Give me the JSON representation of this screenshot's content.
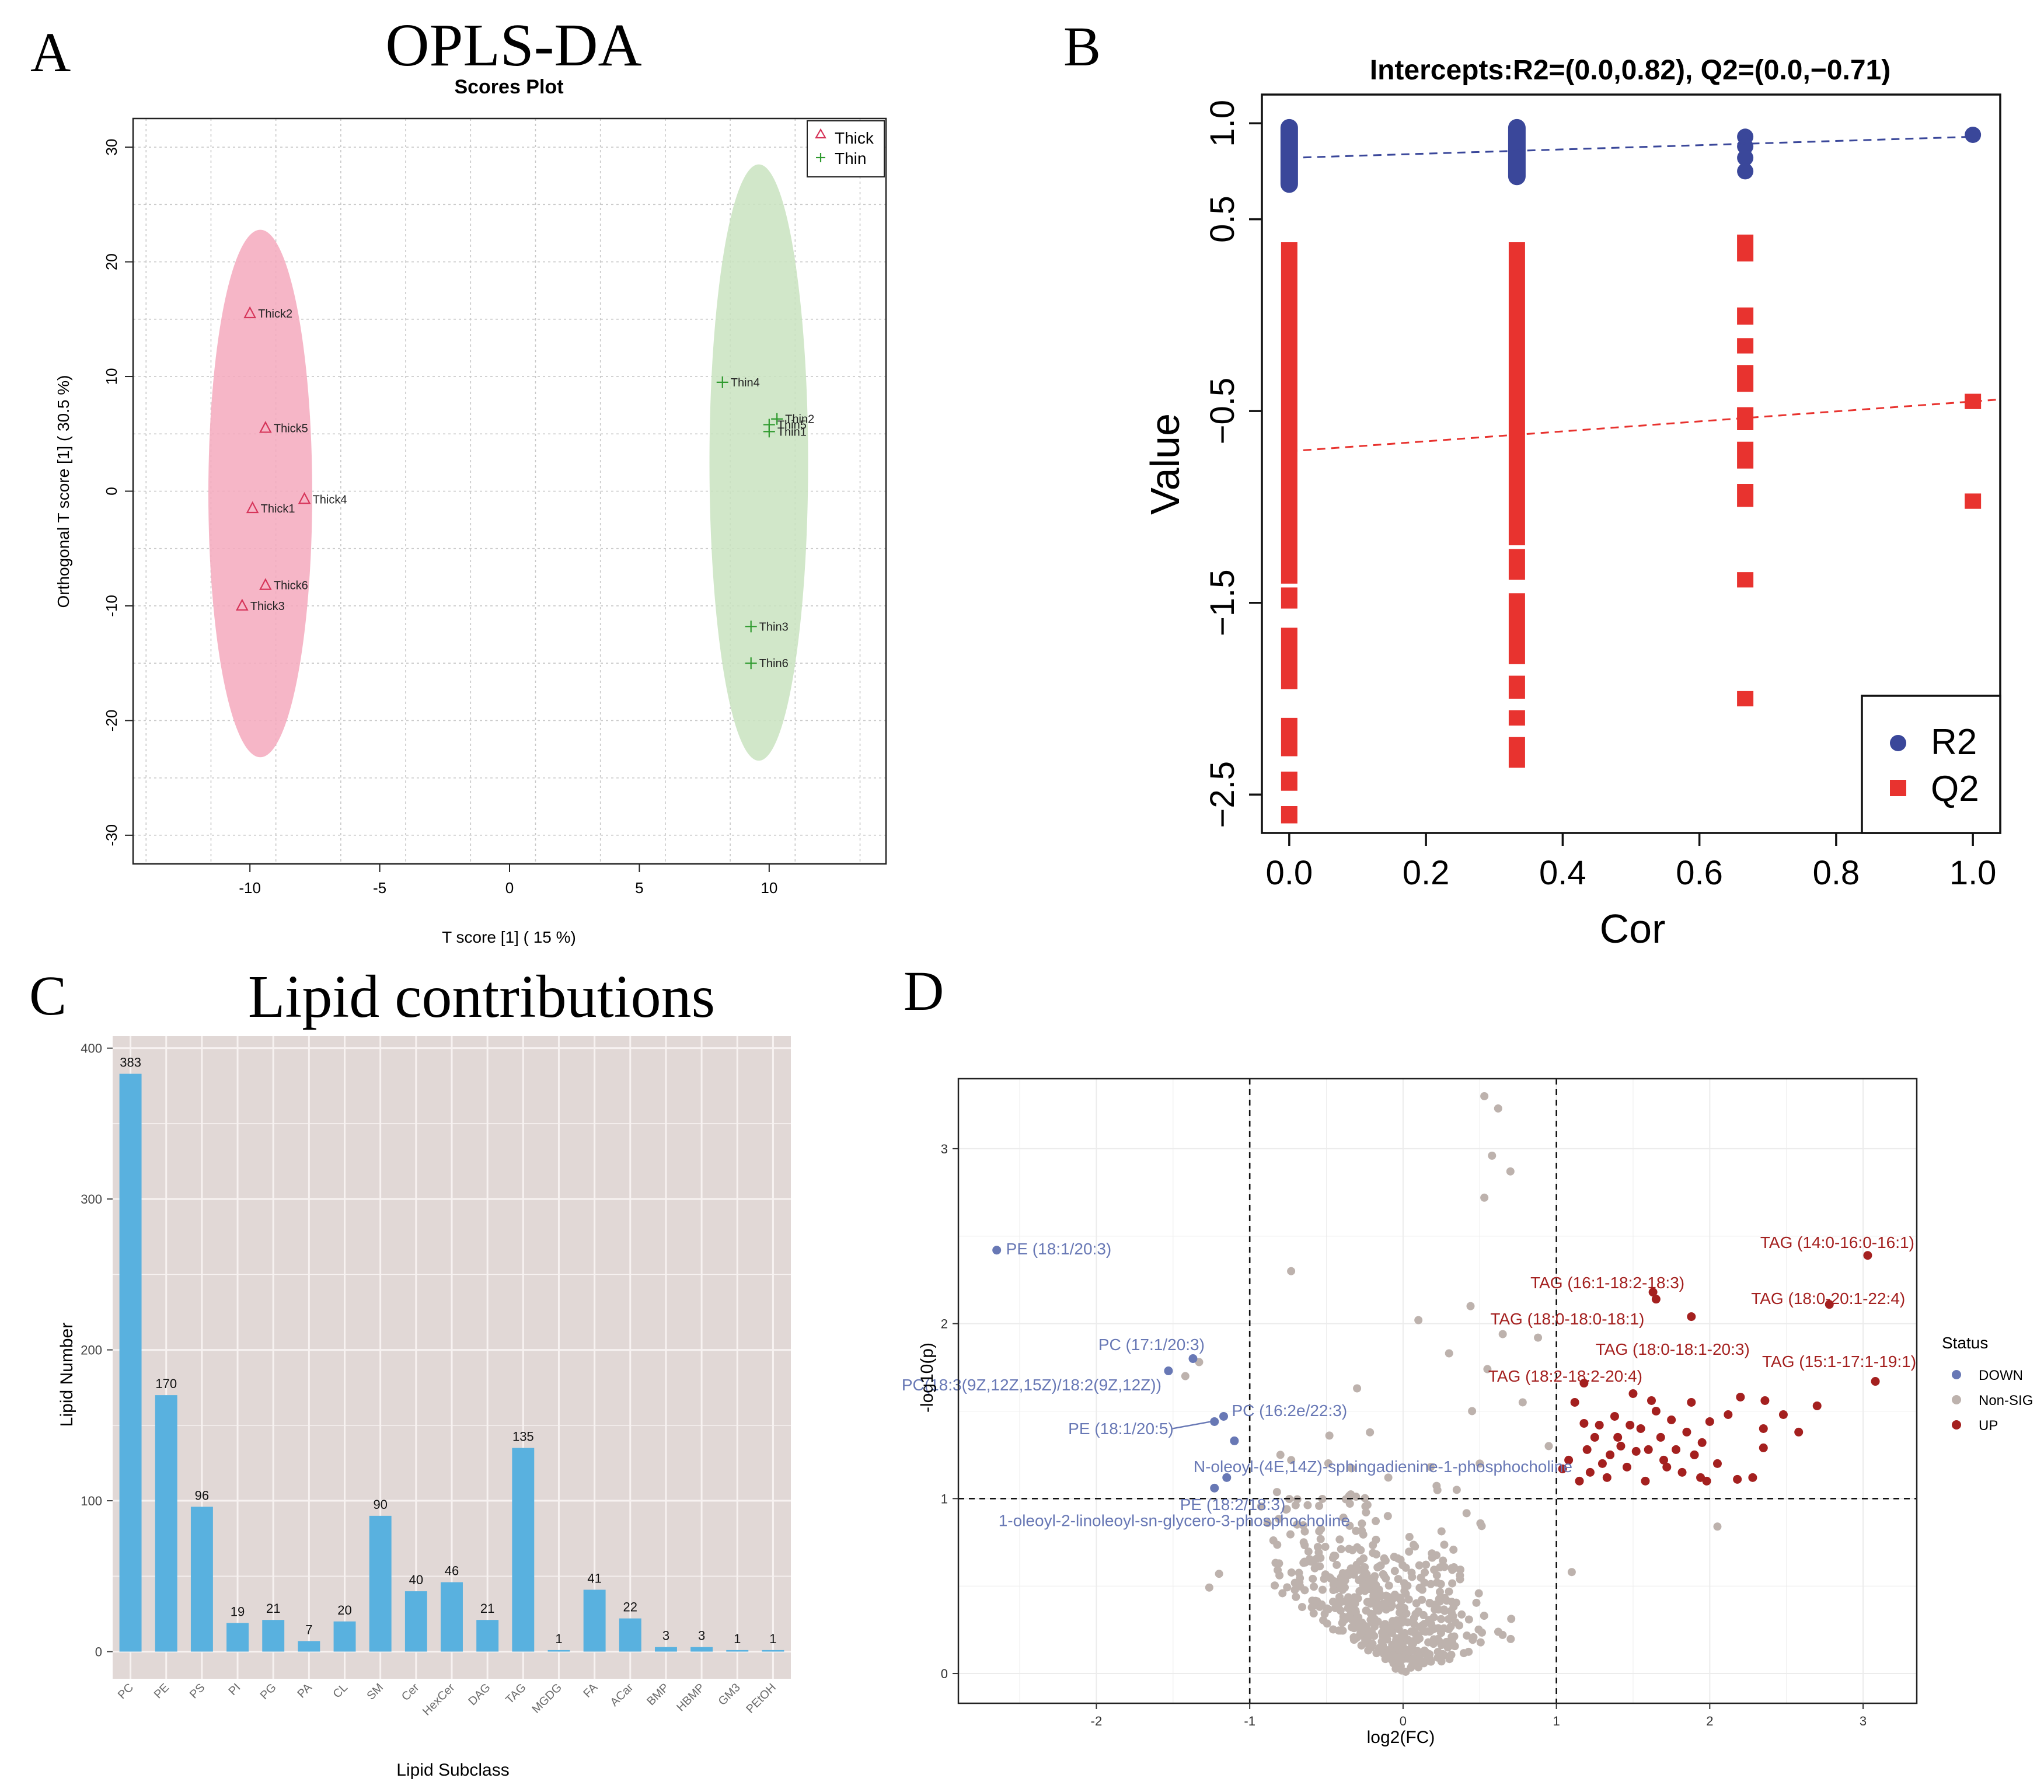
{
  "chart_data": [
    {
      "panel": "A",
      "type": "scatter",
      "title": "OPLS-DA",
      "subtitle": "Scores Plot",
      "xlabel": "T score [1] ( 15 %)",
      "ylabel": "Orthogonal T score [1] ( 30.5 %)",
      "xlim": [
        -14.5,
        14.5
      ],
      "ylim": [
        -32.5,
        32.5
      ],
      "xticks": [
        -10,
        -5,
        0,
        5,
        10
      ],
      "yticks": [
        30,
        20,
        10,
        0,
        -10,
        -20,
        -30
      ],
      "grid": true,
      "legend_position": "top-right",
      "legend": [
        "Thick",
        "Thin"
      ],
      "colors": {
        "Thick": "#d6355a",
        "Thin": "#2e9a2e",
        "Thick_fill": "#f4a9bd",
        "Thin_fill": "#c9e3bf"
      },
      "series": [
        {
          "name": "Thick",
          "marker": "triangle",
          "points": [
            {
              "label": "Thick2",
              "x": -10.0,
              "y": 15.5
            },
            {
              "label": "Thick5",
              "x": -9.4,
              "y": 5.5
            },
            {
              "label": "Thick4",
              "x": -7.9,
              "y": -0.7
            },
            {
              "label": "Thick1",
              "x": -9.9,
              "y": -1.5
            },
            {
              "label": "Thick6",
              "x": -9.4,
              "y": -8.2
            },
            {
              "label": "Thick3",
              "x": -10.3,
              "y": -10.0
            }
          ]
        },
        {
          "name": "Thin",
          "marker": "plus",
          "points": [
            {
              "label": "Thin4",
              "x": 8.2,
              "y": 9.5
            },
            {
              "label": "Thin2",
              "x": 10.3,
              "y": 6.3
            },
            {
              "label": "Thin5",
              "x": 10.0,
              "y": 5.8
            },
            {
              "label": "Thin1",
              "x": 10.0,
              "y": 5.2
            },
            {
              "label": "Thin3",
              "x": 9.3,
              "y": -11.8
            },
            {
              "label": "Thin6",
              "x": 9.3,
              "y": -15.0
            }
          ]
        }
      ],
      "ellipses": [
        {
          "name": "Thick",
          "cx": -9.6,
          "cy": -0.2,
          "rx": 2.0,
          "ry": 23.0
        },
        {
          "name": "Thin",
          "cx": 9.6,
          "cy": 2.5,
          "rx": 1.9,
          "ry": 26.0
        }
      ]
    },
    {
      "panel": "B",
      "type": "scatter",
      "title": "Intercepts:R2=(0.0,0.82), Q2=(0.0,−0.71)",
      "xlabel": "Cor",
      "ylabel": "Value",
      "xlim": [
        -0.04,
        1.04
      ],
      "ylim": [
        -2.7,
        1.15
      ],
      "xticks": [
        "0.0",
        "0.2",
        "0.4",
        "0.6",
        "0.8",
        "1.0"
      ],
      "yticks": [
        "1.0",
        "0.5",
        "−0.5",
        "−1.5",
        "−2.5"
      ],
      "ytick_values": [
        1.0,
        0.5,
        -0.5,
        -1.5,
        -2.5
      ],
      "legend_position": "bottom-right",
      "legend": [
        "R2",
        "Q2"
      ],
      "colors": {
        "R2": "#3a479a",
        "Q2": "#e8332f"
      },
      "r2_line": {
        "intercept": 0.82,
        "slope": 0.11
      },
      "q2_line": {
        "intercept": -0.71,
        "slope": 0.26
      },
      "r2_groups": [
        {
          "x": 0.0,
          "y_min": 0.68,
          "y_max": 0.98
        },
        {
          "x": 0.333,
          "y_min": 0.72,
          "y_max": 0.98
        },
        {
          "x": 0.667,
          "values": [
            0.93,
            0.88,
            0.82,
            0.75
          ]
        },
        {
          "x": 1.0,
          "values": [
            0.94
          ]
        }
      ],
      "q2_groups": [
        {
          "x": 0.0,
          "segments": [
            [
              0.38,
              -1.4
            ],
            [
              -1.42,
              -1.53
            ],
            [
              -1.63,
              -1.95
            ],
            [
              -2.1,
              -2.3
            ],
            [
              -2.38,
              -2.48
            ],
            [
              -2.56,
              -2.65
            ]
          ]
        },
        {
          "x": 0.333,
          "segments": [
            [
              0.38,
              -1.2
            ],
            [
              -1.22,
              -1.38
            ],
            [
              -1.45,
              -1.82
            ],
            [
              -1.88,
              -2.0
            ],
            [
              -2.06,
              -2.14
            ],
            [
              -2.2,
              -2.36
            ]
          ]
        },
        {
          "x": 0.667,
          "segments": [
            [
              0.42,
              0.28
            ],
            [
              0.04,
              -0.05
            ],
            [
              -0.12,
              -0.2
            ],
            [
              -0.26,
              -0.4
            ],
            [
              -0.48,
              -0.6
            ],
            [
              -0.66,
              -0.8
            ],
            [
              -0.88,
              -1.0
            ],
            [
              -1.34,
              -1.42
            ],
            [
              -1.96,
              -2.04
            ]
          ]
        },
        {
          "x": 1.0,
          "segments": [
            [
              -0.41,
              -0.49
            ],
            [
              -0.93,
              -1.01
            ]
          ]
        }
      ]
    },
    {
      "panel": "C",
      "type": "bar",
      "title": "Lipid contributions",
      "xlabel": "Lipid Subclass",
      "ylabel": "Lipid Number",
      "ylim": [
        -18,
        408
      ],
      "yticks": [
        0,
        100,
        200,
        300,
        400
      ],
      "categories": [
        "PC",
        "PE",
        "PS",
        "PI",
        "PG",
        "PA",
        "CL",
        "SM",
        "Cer",
        "HexCer",
        "DAG",
        "TAG",
        "MGDG",
        "FA",
        "ACar",
        "BMP",
        "HBMP",
        "GM3",
        "PEtOH"
      ],
      "values": [
        383,
        170,
        96,
        19,
        21,
        7,
        20,
        90,
        40,
        46,
        21,
        135,
        1,
        41,
        22,
        3,
        3,
        1,
        1
      ],
      "colors": {
        "bar": "#59b1df",
        "panel_bg": "#e1d8d6",
        "grid": "#f7f2f1"
      }
    },
    {
      "panel": "D",
      "type": "scatter",
      "title": "",
      "xlabel": "log2(FC)",
      "ylabel": "-log10(p)",
      "xlim": [
        -2.9,
        3.35
      ],
      "ylim": [
        -0.17,
        3.4
      ],
      "xticks": [
        -2,
        -1,
        0,
        1,
        2,
        3
      ],
      "yticks": [
        0,
        1,
        2,
        3
      ],
      "thresholds": {
        "x": [
          -1,
          1
        ],
        "y": 1
      },
      "legend_title": "Status",
      "legend": [
        "DOWN",
        "Non-SIG",
        "UP"
      ],
      "colors": {
        "DOWN": "#6878b5",
        "Non-SIG": "#bdb2ad",
        "UP": "#a4201f"
      },
      "labels": [
        {
          "text": "PE (18:1/20:3)",
          "x": -2.65,
          "y": 2.42,
          "status": "DOWN"
        },
        {
          "text": "PC (17:1/20:3)",
          "x": -1.37,
          "y": 1.8,
          "status": "DOWN"
        },
        {
          "text": "PC(18:3(9Z,12Z,15Z)/18:2(9Z,12Z))",
          "x": -1.53,
          "y": 1.73,
          "status": "DOWN"
        },
        {
          "text": "PC (16:2e/22:3)",
          "x": -1.17,
          "y": 1.47,
          "status": "DOWN"
        },
        {
          "text": "PE (18:1/20:5)",
          "x": -1.23,
          "y": 1.44,
          "status": "DOWN"
        },
        {
          "text": "N-oleoyl-(4E,14Z)-sphingadienine-1-phosphocholine",
          "x": -1.1,
          "y": 1.33,
          "status": "DOWN"
        },
        {
          "text": "PE (18:2/18:3)",
          "x": -1.15,
          "y": 1.12,
          "status": "DOWN"
        },
        {
          "text": "1-oleoyl-2-linoleoyl-sn-glycero-3-phosphocholine",
          "x": -1.23,
          "y": 1.06,
          "status": "DOWN"
        },
        {
          "text": "TAG (14:0-16:0-16:1)",
          "x": 3.03,
          "y": 2.39,
          "status": "UP"
        },
        {
          "text": "TAG (16:1-18:2-18:3)",
          "x": 1.63,
          "y": 2.18,
          "status": "UP"
        },
        {
          "text": "TAG (18:0-20:1-22:4)",
          "x": 2.78,
          "y": 2.11,
          "status": "UP"
        },
        {
          "text": "TAG (18:0-18:0-18:1)",
          "x": 1.65,
          "y": 2.14,
          "status": "UP"
        },
        {
          "text": "TAG (18:0-18:1-20:3)",
          "x": 1.88,
          "y": 2.04,
          "status": "UP"
        },
        {
          "text": "TAG (18:2-18:2-20:4)",
          "x": 1.18,
          "y": 1.66,
          "status": "UP"
        },
        {
          "text": "TAG (15:1-17:1-19:1)",
          "x": 3.08,
          "y": 1.67,
          "status": "UP"
        }
      ]
    }
  ],
  "panel_letters": [
    "A",
    "B",
    "C",
    "D"
  ]
}
